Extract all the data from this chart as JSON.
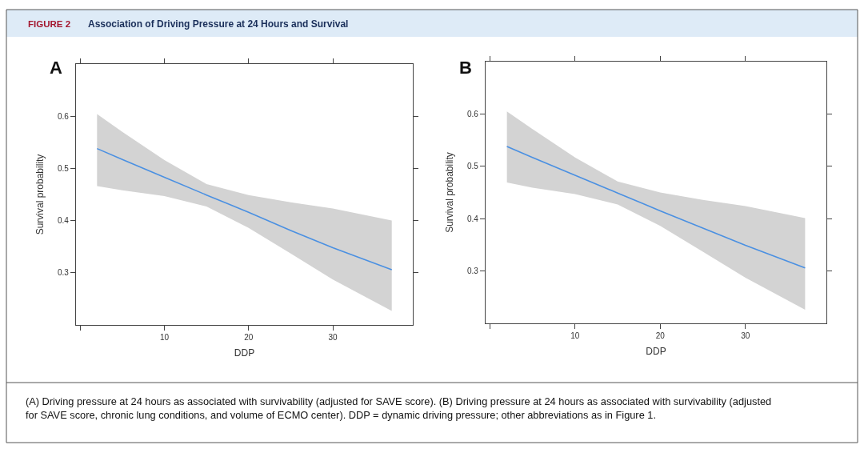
{
  "chart_data": [
    {
      "type": "line",
      "title": "A",
      "xlabel": "DDP",
      "ylabel": "Survival probability",
      "annotations": [
        "FIGURE 2",
        "Association of Driving Pressure at 24 Hours and Survival",
        "(A) Driving pressure at 24 hours as associated with survivability (adjusted for SAVE score). (B) Driving pressure at 24 hours as associated with survivability (adjusted for SAVE score, chronic lung conditions, and volume of ECMO center). DDP = dynamic driving pressure; other abbreviations as in Figure 1."
      ],
      "series": [
        {
          "color": "#4a90e2",
          "x": [
            2,
            5,
            10,
            15,
            20,
            25,
            30,
            37
          ],
          "values": [
            0.538,
            0.517,
            0.483,
            0.449,
            0.416,
            0.381,
            0.348,
            0.306
          ],
          "lower": [
            0.466,
            0.458,
            0.447,
            0.427,
            0.386,
            0.337,
            0.287,
            0.227
          ],
          "upper": [
            0.604,
            0.57,
            0.516,
            0.47,
            0.449,
            0.435,
            0.423,
            0.4
          ]
        }
      ],
      "xlim": [
        -0.5,
        39.5
      ],
      "xticks": [
        {
          "value": 0,
          "label": null
        },
        10,
        20,
        30
      ],
      "ylim": [
        0.2,
        0.7
      ],
      "yticks": [
        0.3,
        0.4,
        0.5,
        0.6
      ]
    },
    {
      "type": "line",
      "title": "B",
      "xlabel": "DDP",
      "ylabel": "Survival probability",
      "series": [
        {
          "color": "#4a90e2",
          "x": [
            2,
            5,
            10,
            15,
            20,
            25,
            30,
            37
          ],
          "values": [
            0.538,
            0.517,
            0.483,
            0.449,
            0.415,
            0.382,
            0.349,
            0.306
          ],
          "lower": [
            0.469,
            0.459,
            0.447,
            0.427,
            0.386,
            0.337,
            0.287,
            0.226
          ],
          "upper": [
            0.605,
            0.571,
            0.517,
            0.471,
            0.45,
            0.436,
            0.424,
            0.401
          ]
        }
      ],
      "xlim": [
        -0.5,
        39.5
      ],
      "xticks": [
        {
          "value": 0,
          "label": null
        },
        10,
        20,
        30
      ],
      "ylim": [
        0.2,
        0.7
      ],
      "yticks": [
        0.3,
        0.4,
        0.5,
        0.6
      ]
    }
  ]
}
